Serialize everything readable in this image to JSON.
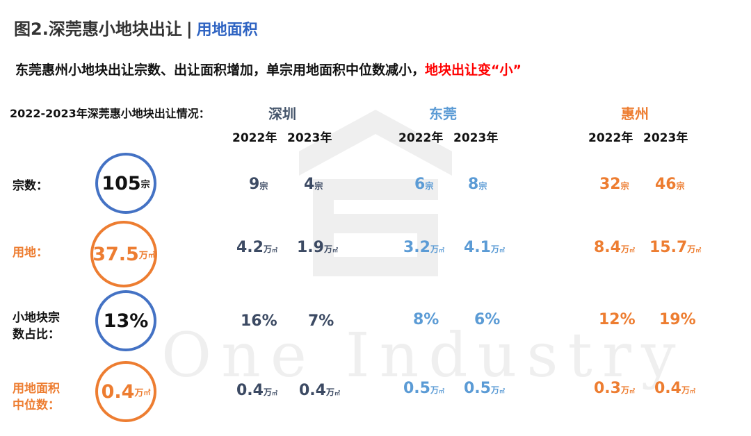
{
  "header": {
    "title": "图2.深莞惠小地块出让",
    "separator": "|",
    "title_accent": "用地面积"
  },
  "subtitle": {
    "text": "东莞惠州小地块出让宗数、出让面积增加，单宗用地面积中位数减小，",
    "highlight": "地块出让变“小”",
    "highlight_color": "#ff0000"
  },
  "section_heading": "2022-2023年深莞惠小地块出让情况：",
  "cities": [
    {
      "name": "深圳",
      "color": "#44546a",
      "years": [
        "2022年",
        "2023年"
      ]
    },
    {
      "name": "东莞",
      "color": "#5b9bd5",
      "years": [
        "2022年",
        "2023年"
      ]
    },
    {
      "name": "惠州",
      "color": "#ed7d31",
      "years": [
        "2022年",
        "2023年"
      ]
    }
  ],
  "rows": [
    {
      "label": "宗数：",
      "total": {
        "value": "105",
        "unit": "宗"
      },
      "values": [
        {
          "value": "9",
          "unit": "宗"
        },
        {
          "value": "4",
          "unit": "宗"
        },
        {
          "value": "6",
          "unit": "宗"
        },
        {
          "value": "8",
          "unit": "宗"
        },
        {
          "value": "32",
          "unit": "宗"
        },
        {
          "value": "46",
          "unit": "宗"
        }
      ]
    },
    {
      "label": "用地：",
      "total": {
        "value": "37.5",
        "unit": "万",
        "unit2": "㎡"
      },
      "values": [
        {
          "value": "4.2",
          "unit": "万",
          "unit2": "㎡"
        },
        {
          "value": "1.9",
          "unit": "万",
          "unit2": "㎡"
        },
        {
          "value": "3.2",
          "unit": "万",
          "unit2": "㎡"
        },
        {
          "value": "4.1",
          "unit": "万",
          "unit2": "㎡"
        },
        {
          "value": "8.4",
          "unit": "万",
          "unit2": "㎡"
        },
        {
          "value": "15.7",
          "unit": "万",
          "unit2": "㎡"
        }
      ]
    },
    {
      "label_line1": "小地块宗",
      "label_line2": "数占比：",
      "total": {
        "value": "13%"
      },
      "values": [
        {
          "value": "16%"
        },
        {
          "value": "7%"
        },
        {
          "value": "8%"
        },
        {
          "value": "6%"
        },
        {
          "value": "12%"
        },
        {
          "value": "19%"
        }
      ]
    },
    {
      "label_line1": "用地面积",
      "label_line2": "中位数：",
      "total": {
        "value": "0.4",
        "unit": "万",
        "unit2": "㎡"
      },
      "values": [
        {
          "value": "0.4",
          "unit": "万",
          "unit2": "㎡"
        },
        {
          "value": "0.4",
          "unit": "万",
          "unit2": "㎡"
        },
        {
          "value": "0.5",
          "unit": "万",
          "unit2": "㎡"
        },
        {
          "value": "0.5",
          "unit": "万",
          "unit2": "㎡"
        },
        {
          "value": "0.3",
          "unit": "万",
          "unit2": "㎡"
        },
        {
          "value": "0.4",
          "unit": "万",
          "unit2": "㎡"
        }
      ]
    }
  ],
  "watermark": "One Industry",
  "colors": {
    "blue_accent": "#4472c4",
    "orange_accent": "#ed7d31",
    "title_accent": "#2e63c2"
  }
}
